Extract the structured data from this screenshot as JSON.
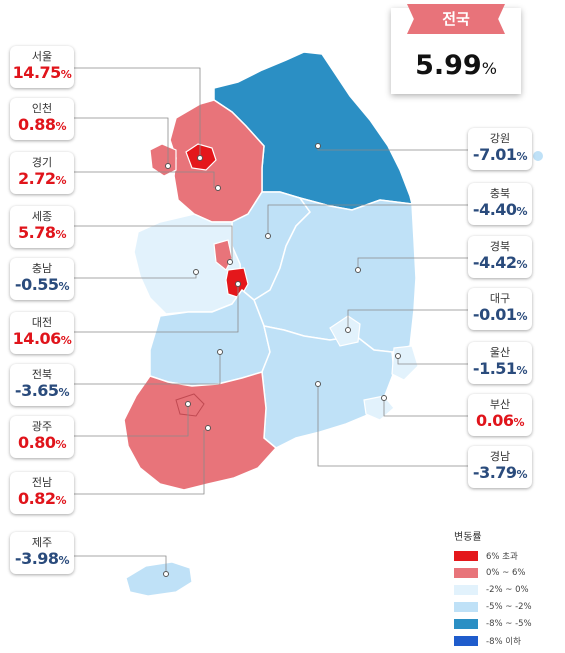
{
  "national": {
    "label": "전국",
    "value": "5.99",
    "unit": "%"
  },
  "legend": {
    "title": "변동률",
    "items": [
      {
        "label": "6% 초과",
        "color": "#e4171b"
      },
      {
        "label": "0% ~ 6%",
        "color": "#e8747a"
      },
      {
        "label": "-2% ~ 0%",
        "color": "#e2f2fc"
      },
      {
        "label": "-5% ~ -2%",
        "color": "#bfe1f7"
      },
      {
        "label": "-8% ~ -5%",
        "color": "#2b8fc4"
      },
      {
        "label": "-8% 이하",
        "color": "#1f5ccc"
      }
    ]
  },
  "regions": [
    {
      "name": "서울",
      "value": "14.75",
      "unit": "%",
      "sign": "pos"
    },
    {
      "name": "인천",
      "value": "0.88",
      "unit": "%",
      "sign": "pos"
    },
    {
      "name": "경기",
      "value": "2.72",
      "unit": "%",
      "sign": "pos"
    },
    {
      "name": "세종",
      "value": "5.78",
      "unit": "%",
      "sign": "pos"
    },
    {
      "name": "충남",
      "value": "-0.55",
      "unit": "%",
      "sign": "neg"
    },
    {
      "name": "대전",
      "value": "14.06",
      "unit": "%",
      "sign": "pos"
    },
    {
      "name": "전북",
      "value": "-3.65",
      "unit": "%",
      "sign": "neg"
    },
    {
      "name": "광주",
      "value": "0.80",
      "unit": "%",
      "sign": "pos"
    },
    {
      "name": "전남",
      "value": "0.82",
      "unit": "%",
      "sign": "pos"
    },
    {
      "name": "제주",
      "value": "-3.98",
      "unit": "%",
      "sign": "neg"
    },
    {
      "name": "강원",
      "value": "-7.01",
      "unit": "%",
      "sign": "neg"
    },
    {
      "name": "충북",
      "value": "-4.40",
      "unit": "%",
      "sign": "neg"
    },
    {
      "name": "경북",
      "value": "-4.42",
      "unit": "%",
      "sign": "neg"
    },
    {
      "name": "대구",
      "value": "-0.01",
      "unit": "%",
      "sign": "neg"
    },
    {
      "name": "울산",
      "value": "-1.51",
      "unit": "%",
      "sign": "neg"
    },
    {
      "name": "부산",
      "value": "0.06",
      "unit": "%",
      "sign": "pos"
    },
    {
      "name": "경남",
      "value": "-3.79",
      "unit": "%",
      "sign": "neg"
    }
  ]
}
